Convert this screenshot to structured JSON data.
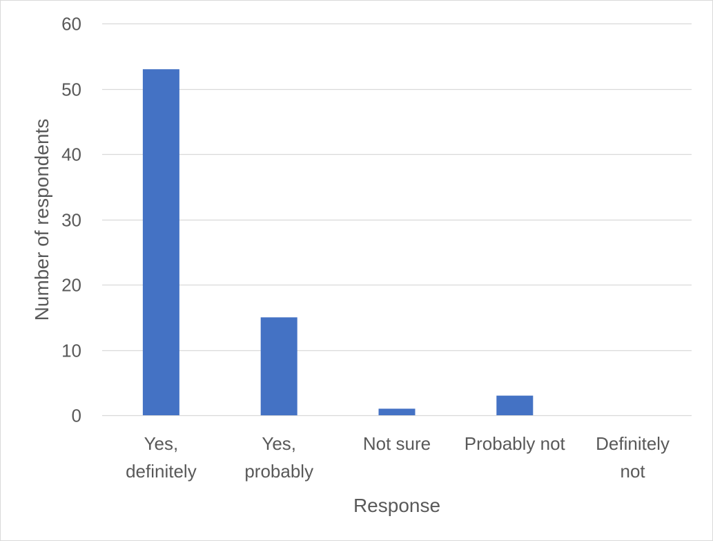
{
  "chart_data": {
    "type": "bar",
    "title": "",
    "xlabel": "Response",
    "ylabel": "Number of respondents",
    "categories": [
      [
        "Yes,",
        "definitely"
      ],
      [
        "Yes,",
        "probably"
      ],
      [
        "Not sure"
      ],
      [
        "Probably not"
      ],
      [
        "Definitely",
        "not"
      ]
    ],
    "values": [
      53,
      15,
      1,
      3,
      0
    ],
    "ylim": [
      0,
      60
    ],
    "yticks": [
      0,
      10,
      20,
      30,
      40,
      50,
      60
    ],
    "grid": true,
    "legend": "none",
    "colors": {
      "bar": "#4472C4",
      "grid": "#d9d9d9",
      "text": "#595959",
      "frame": "#d9d9d9"
    }
  }
}
